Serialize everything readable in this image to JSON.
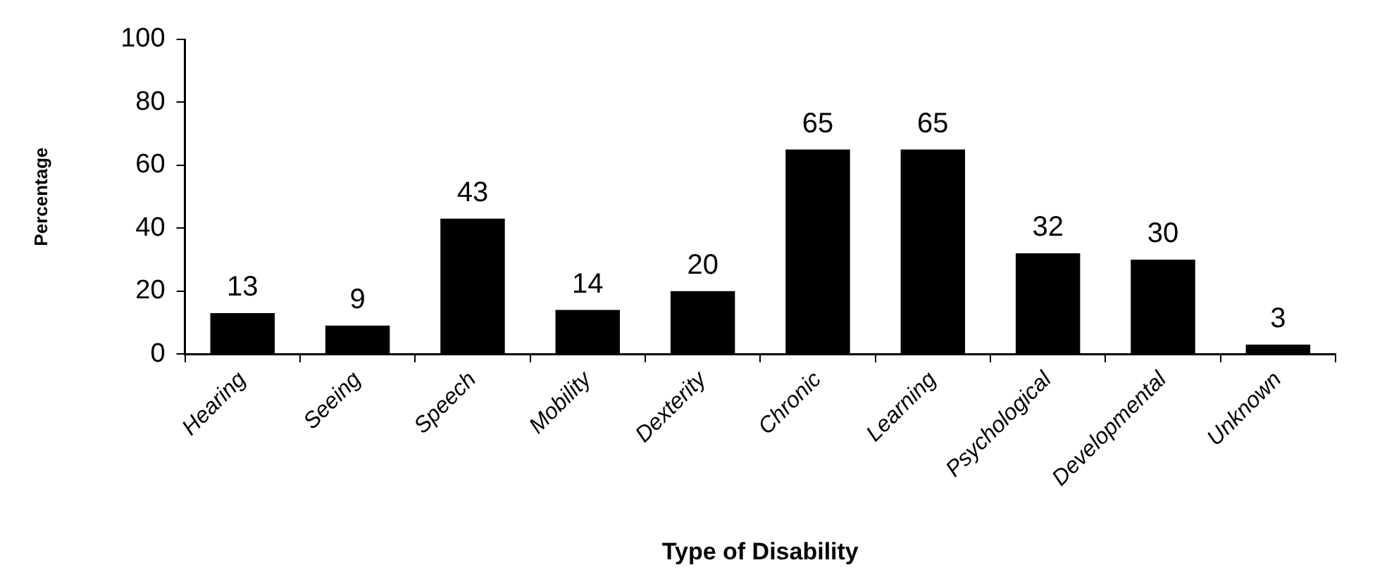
{
  "chart_data": {
    "type": "bar",
    "xlabel": "Type of Disability",
    "ylabel": "Percentage",
    "categories": [
      "Hearing",
      "Seeing",
      "Speech",
      "Mobility",
      "Dexterity",
      "Chronic",
      "Learning",
      "Psychological",
      "Developmental",
      "Unknown"
    ],
    "values": [
      13,
      9,
      43,
      14,
      20,
      65,
      65,
      32,
      30,
      3
    ],
    "color": "#000000",
    "ylim": [
      0,
      100
    ],
    "yticks": [
      0,
      20,
      40,
      60,
      80,
      100
    ],
    "grid": false,
    "legend": false,
    "data_labels": true
  }
}
